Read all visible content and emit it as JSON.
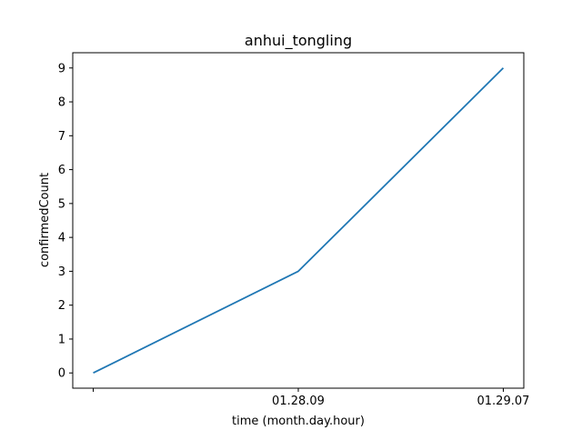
{
  "chart_data": {
    "type": "line",
    "title": "anhui_tongling",
    "xlabel": "time (month.day.hour)",
    "ylabel": "confirmedCount",
    "categories": [
      "",
      "01.28.09",
      "01.29.07"
    ],
    "series": [
      {
        "values": [
          0,
          3,
          9
        ],
        "color": "#1f77b4"
      }
    ],
    "ylim": [
      -0.45,
      9.45
    ],
    "yticks": [
      0,
      1,
      2,
      3,
      4,
      5,
      6,
      7,
      8,
      9
    ],
    "grid": false,
    "legend": "none"
  }
}
